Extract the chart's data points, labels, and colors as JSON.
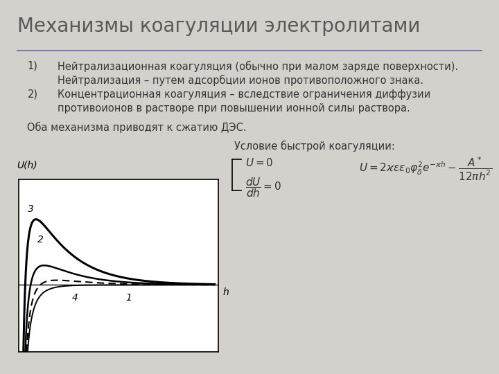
{
  "title": "Механизмы коагуляции электролитами",
  "title_fontsize": 20,
  "title_color": "#595959",
  "bg_color": "#d4d0cc",
  "line_color": "#7070b0",
  "text_color": "#333333",
  "bullet1_line1": "Нейтрализационная коагуляция (обычно при малом заряде поверхности).",
  "bullet1_line2": "Нейтрализация – путем адсорбции ионов противоположного знака.",
  "bullet2_line1": "Концентрационная коагуляция – вследствие ограничения диффузии",
  "bullet2_line2": "противоионов в растворе при повышении ионной силы раствора.",
  "both_text": "   Оба механизма приводят к сжатию ДЭС.",
  "condition_title": "Условие быстрой коагуляции:",
  "graph_ylabel": "U(h)",
  "graph_xlabel": "h"
}
